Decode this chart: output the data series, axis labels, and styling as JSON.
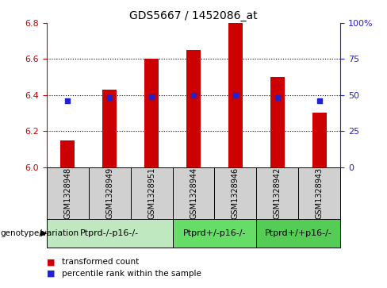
{
  "title": "GDS5667 / 1452086_at",
  "samples": [
    "GSM1328948",
    "GSM1328949",
    "GSM1328951",
    "GSM1328944",
    "GSM1328946",
    "GSM1328942",
    "GSM1328943"
  ],
  "bar_values": [
    6.15,
    6.43,
    6.6,
    6.65,
    6.8,
    6.5,
    6.3
  ],
  "percentile_values": [
    46,
    48,
    49,
    50,
    50,
    48,
    46
  ],
  "ylim_left": [
    6.0,
    6.8
  ],
  "ylim_right": [
    0,
    100
  ],
  "bar_color": "#cc0000",
  "dot_color": "#2222cc",
  "grid_color": "#000000",
  "groups": [
    {
      "label": "Ptprd-/-p16-/-",
      "samples_idx": [
        0,
        1,
        2
      ],
      "color": "#c0e8c0"
    },
    {
      "label": "Ptprd+/-p16-/-",
      "samples_idx": [
        3,
        4
      ],
      "color": "#66dd66"
    },
    {
      "label": "Ptprd+/+p16-/-",
      "samples_idx": [
        5,
        6
      ],
      "color": "#55cc55"
    }
  ],
  "legend_items": [
    {
      "label": "transformed count",
      "color": "#cc0000"
    },
    {
      "label": "percentile rank within the sample",
      "color": "#2222cc"
    }
  ],
  "genotype_label": "genotype/variation",
  "left_tick_color": "#cc0000",
  "right_tick_color": "#2222cc",
  "sample_box_color": "#d0d0d0",
  "bar_width": 0.35,
  "title_fontsize": 10,
  "tick_fontsize": 8,
  "label_fontsize": 7,
  "group_fontsize": 8,
  "legend_fontsize": 7.5
}
